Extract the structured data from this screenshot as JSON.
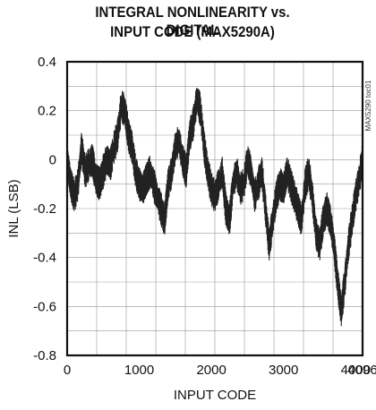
{
  "chart_data": {
    "type": "line",
    "title_line1": "INTEGRAL NONLINEARITY vs. DIGITAL",
    "title_line2": "INPUT CODE (MAX5290A)",
    "xlabel": "INPUT CODE",
    "ylabel": "INL (LSB)",
    "side_label": "MAX5290 toc01",
    "xlim": [
      0,
      4096
    ],
    "ylim": [
      -0.8,
      0.4
    ],
    "xticks": [
      0,
      1000,
      2000,
      3000,
      4000,
      4096
    ],
    "xtick_labels": [
      "0",
      "1000",
      "2000",
      "3000",
      "4000",
      "4096"
    ],
    "yticks": [
      0.4,
      0.2,
      0,
      -0.2,
      -0.4,
      -0.6,
      -0.8
    ],
    "ytick_labels": [
      "0.4",
      "0.2",
      "0",
      "-0.2",
      "-0.4",
      "-0.6",
      "-0.8"
    ],
    "grid": true,
    "series": [
      {
        "color": "#222222",
        "x": [
          0,
          50,
          100,
          150,
          200,
          250,
          300,
          350,
          400,
          450,
          500,
          550,
          600,
          650,
          700,
          750,
          800,
          850,
          900,
          950,
          1000,
          1050,
          1100,
          1150,
          1200,
          1250,
          1300,
          1350,
          1400,
          1450,
          1500,
          1550,
          1600,
          1650,
          1700,
          1750,
          1800,
          1850,
          1900,
          1950,
          2000,
          2050,
          2100,
          2150,
          2200,
          2250,
          2300,
          2350,
          2400,
          2450,
          2500,
          2550,
          2600,
          2650,
          2700,
          2750,
          2800,
          2850,
          2900,
          2950,
          3000,
          3050,
          3100,
          3150,
          3200,
          3250,
          3300,
          3350,
          3400,
          3450,
          3500,
          3550,
          3600,
          3650,
          3700,
          3750,
          3800,
          3850,
          3900,
          3950,
          4000,
          4050,
          4095
        ],
        "y": [
          0.0,
          -0.1,
          -0.15,
          -0.1,
          0.05,
          -0.05,
          -0.02,
          0.0,
          -0.08,
          -0.1,
          -0.05,
          0.0,
          -0.02,
          0.05,
          0.1,
          0.22,
          0.2,
          0.1,
          0.05,
          -0.05,
          -0.1,
          -0.12,
          -0.08,
          -0.05,
          -0.1,
          -0.15,
          -0.2,
          -0.25,
          -0.1,
          -0.05,
          0.05,
          0.08,
          0.0,
          -0.05,
          0.1,
          0.15,
          0.25,
          0.2,
          0.05,
          -0.05,
          -0.12,
          -0.15,
          -0.1,
          -0.05,
          -0.2,
          -0.25,
          -0.1,
          -0.05,
          -0.12,
          -0.1,
          0.0,
          -0.05,
          -0.15,
          -0.1,
          -0.05,
          -0.2,
          -0.35,
          -0.25,
          -0.15,
          -0.1,
          -0.12,
          -0.05,
          -0.1,
          -0.15,
          -0.2,
          -0.25,
          -0.1,
          -0.05,
          -0.15,
          -0.3,
          -0.35,
          -0.25,
          -0.2,
          -0.25,
          -0.35,
          -0.5,
          -0.62,
          -0.5,
          -0.35,
          -0.25,
          -0.15,
          -0.08,
          0.0
        ]
      }
    ]
  }
}
